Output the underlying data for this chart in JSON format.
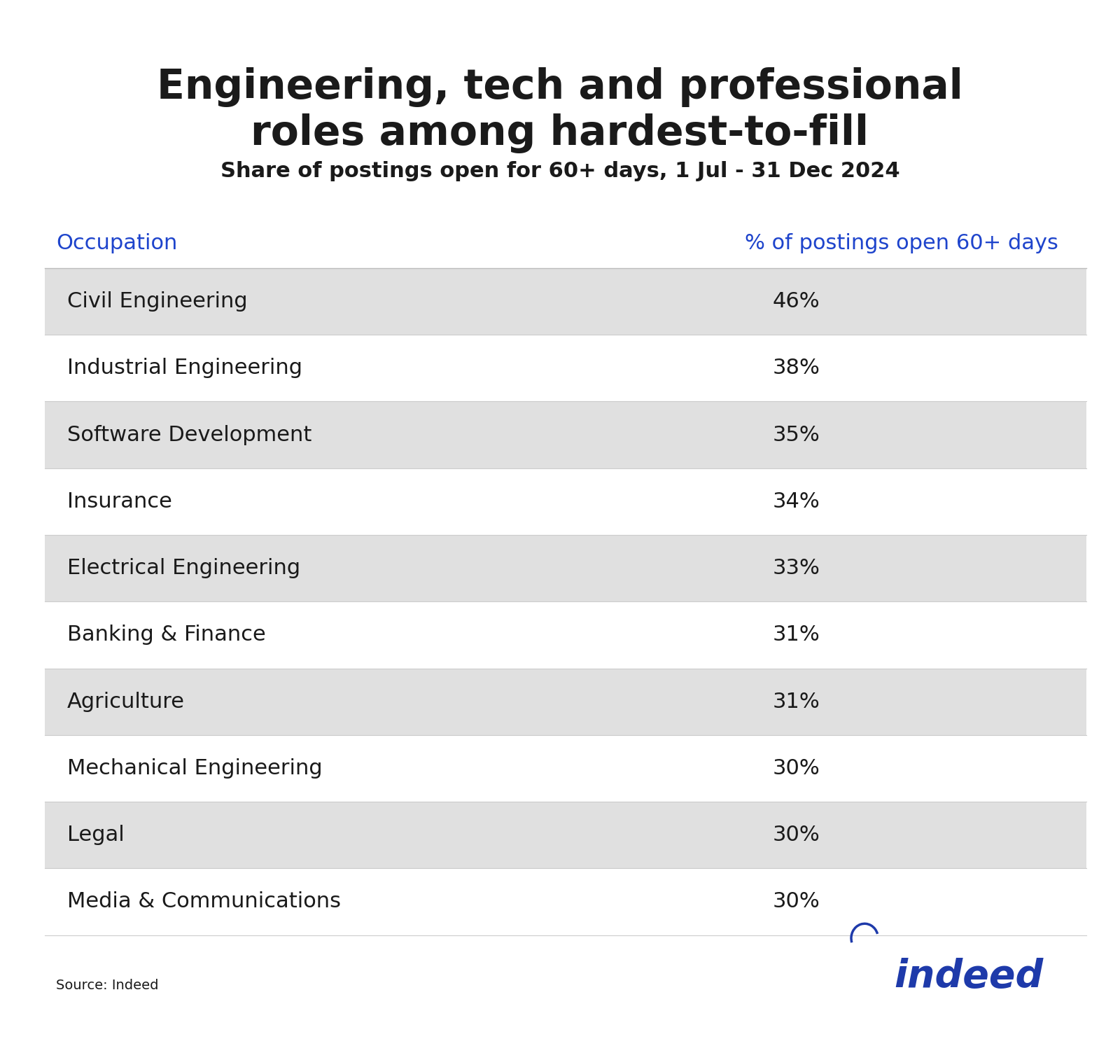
{
  "title": "Engineering, tech and professional\nroles among hardest-to-fill",
  "subtitle": "Share of postings open for 60+ days, 1 Jul - 31 Dec 2024",
  "col1_header": "Occupation",
  "col2_header": "% of postings open 60+ days",
  "rows": [
    [
      "Civil Engineering",
      "46%"
    ],
    [
      "Industrial Engineering",
      "38%"
    ],
    [
      "Software Development",
      "35%"
    ],
    [
      "Insurance",
      "34%"
    ],
    [
      "Electrical Engineering",
      "33%"
    ],
    [
      "Banking & Finance",
      "31%"
    ],
    [
      "Agriculture",
      "31%"
    ],
    [
      "Mechanical Engineering",
      "30%"
    ],
    [
      "Legal",
      "30%"
    ],
    [
      "Media & Communications",
      "30%"
    ]
  ],
  "shaded_rows": [
    0,
    2,
    4,
    6,
    8
  ],
  "row_bg_shaded": "#e0e0e0",
  "row_bg_white": "#ffffff",
  "header_color": "#1e44cc",
  "title_color": "#1a1a1a",
  "subtitle_color": "#1a1a1a",
  "text_color": "#1a1a1a",
  "source_text": "Source: Indeed",
  "indeed_color": "#1e3aaa",
  "bg_color": "#ffffff",
  "title_fontsize": 42,
  "subtitle_fontsize": 22,
  "header_fontsize": 22,
  "row_fontsize": 22,
  "source_fontsize": 14,
  "indeed_fontsize": 40
}
